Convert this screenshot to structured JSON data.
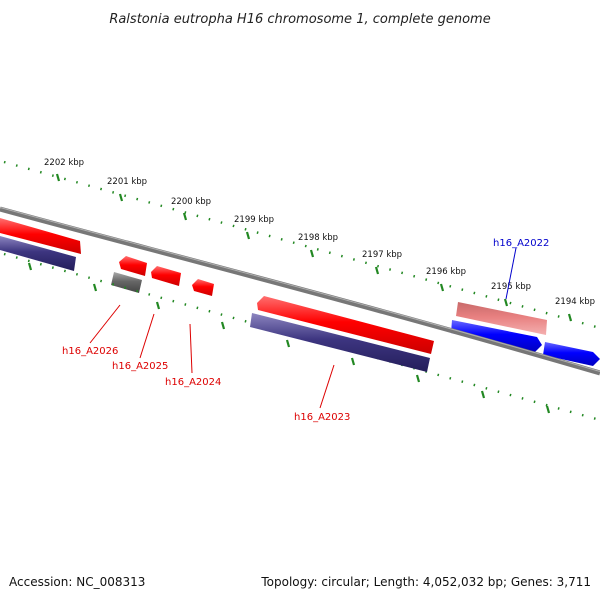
{
  "title": "Ralstonia eutropha H16 chromosome 1, complete genome",
  "scale_labels": [
    "2202 kbp",
    "2201 kbp",
    "2200 kbp",
    "2199 kbp",
    "2198 kbp",
    "2197 kbp",
    "2196 kbp",
    "2195 kbp",
    "2194 kbp"
  ],
  "genes": [
    {
      "label": "h16_A2026",
      "track": "reverse",
      "color": "#555555"
    },
    {
      "label": "h16_A2025",
      "track": "reverse",
      "color": "#dd0000"
    },
    {
      "label": "h16_A2024",
      "track": "reverse",
      "color": "#dd0000"
    },
    {
      "label": "h16_A2023",
      "track": "reverse",
      "color": "#dd0000"
    },
    {
      "label": "h16_A2022",
      "track": "forward",
      "color": "#0000cc"
    }
  ],
  "footer": {
    "accession": "Accession: NC_008313",
    "summary": "Topology: circular; Length: 4,052,032 bp; Genes: 3,711"
  },
  "colors": {
    "backbone": "#888888",
    "ticks": "#228822",
    "cds_red": "#ff0000",
    "cds_blue": "#0000ff",
    "cds_grey": "#666666",
    "gc_navy": "#3d3580",
    "cds_pink": "#e88080"
  }
}
